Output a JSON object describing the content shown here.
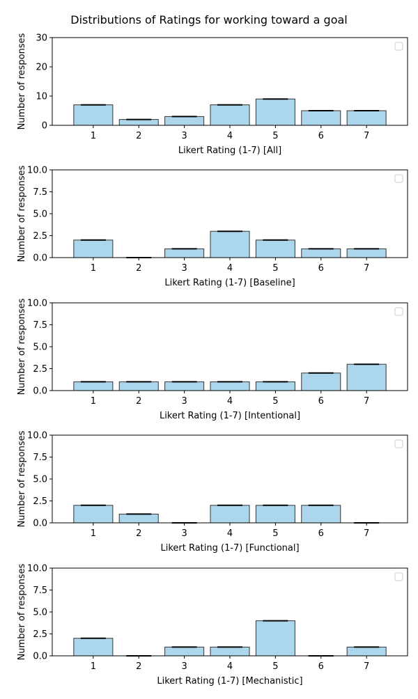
{
  "figure": {
    "title": "Distributions of Ratings for working toward a goal"
  },
  "style": {
    "bar_fill": "#acd6ec",
    "bar_edge": "#333333",
    "axis_color": "#000000",
    "legend_edge": "#cccccc"
  },
  "chart_data": [
    {
      "type": "bar",
      "categories": [
        "1",
        "2",
        "3",
        "4",
        "5",
        "6",
        "7"
      ],
      "values": [
        7,
        2,
        3,
        7,
        9,
        5,
        5
      ],
      "ylim": [
        0,
        30
      ],
      "yticks": [
        "0",
        "10",
        "20",
        "30"
      ],
      "ytick_values": [
        0,
        10,
        20,
        30
      ],
      "xlabel": "Likert Rating (1-7) [All]",
      "ylabel": "Number of responses",
      "legend": "top-right",
      "grid": false
    },
    {
      "type": "bar",
      "categories": [
        "1",
        "2",
        "3",
        "4",
        "5",
        "6",
        "7"
      ],
      "values": [
        2,
        0,
        1,
        3,
        2,
        1,
        1
      ],
      "ylim": [
        0,
        10
      ],
      "yticks": [
        "0.0",
        "2.5",
        "5.0",
        "7.5",
        "10.0"
      ],
      "ytick_values": [
        0,
        2.5,
        5,
        7.5,
        10
      ],
      "xlabel": "Likert Rating (1-7) [Baseline]",
      "ylabel": "Number of responses",
      "legend": "top-right",
      "grid": false
    },
    {
      "type": "bar",
      "categories": [
        "1",
        "2",
        "3",
        "4",
        "5",
        "6",
        "7"
      ],
      "values": [
        1,
        1,
        1,
        1,
        1,
        2,
        3
      ],
      "ylim": [
        0,
        10
      ],
      "yticks": [
        "0.0",
        "2.5",
        "5.0",
        "7.5",
        "10.0"
      ],
      "ytick_values": [
        0,
        2.5,
        5,
        7.5,
        10
      ],
      "xlabel": "Likert Rating (1-7) [Intentional]",
      "ylabel": "Number of responses",
      "legend": "top-right",
      "grid": false
    },
    {
      "type": "bar",
      "categories": [
        "1",
        "2",
        "3",
        "4",
        "5",
        "6",
        "7"
      ],
      "values": [
        2,
        1,
        0,
        2,
        2,
        2,
        0
      ],
      "ylim": [
        0,
        10
      ],
      "yticks": [
        "0.0",
        "2.5",
        "5.0",
        "7.5",
        "10.0"
      ],
      "ytick_values": [
        0,
        2.5,
        5,
        7.5,
        10
      ],
      "xlabel": "Likert Rating (1-7) [Functional]",
      "ylabel": "Number of responses",
      "legend": "top-right",
      "grid": false
    },
    {
      "type": "bar",
      "categories": [
        "1",
        "2",
        "3",
        "4",
        "5",
        "6",
        "7"
      ],
      "values": [
        2,
        0,
        1,
        1,
        4,
        0,
        1
      ],
      "ylim": [
        0,
        10
      ],
      "yticks": [
        "0.0",
        "2.5",
        "5.0",
        "7.5",
        "10.0"
      ],
      "ytick_values": [
        0,
        2.5,
        5,
        7.5,
        10
      ],
      "xlabel": "Likert Rating (1-7) [Mechanistic]",
      "ylabel": "Number of responses",
      "legend": "top-right",
      "grid": false
    }
  ]
}
